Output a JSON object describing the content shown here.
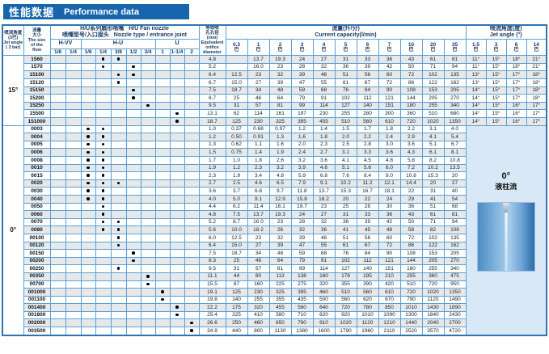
{
  "title": {
    "zh": "性能数据",
    "en": "Performance data"
  },
  "colors": {
    "title_bar": "#1766ad",
    "grid": "#58a0d8",
    "outer_border": "#2e74b5",
    "row_stripe": "#e7e8ea",
    "illustration_bg": "#d9e8f6"
  },
  "header": {
    "angle_col": {
      "zh1": "喷流角度",
      "zh2": "(3巴)",
      "en1": "Jet angle",
      "en2": "( 3 bar)"
    },
    "flow_col": {
      "zh1": "流量",
      "zh2": "大小",
      "en1": "The size",
      "en2": "of the",
      "en3": "flow"
    },
    "nozzle_group": {
      "zh1": "H/U系列扇形喷嘴",
      "en1": "H/U  Fan nozzle",
      "zh2": "喷嘴型号/入口接头",
      "en2": "Nozzle type / entrance joint"
    },
    "nozzle_types": [
      {
        "label": "H-VV",
        "sizes": [
          "1/8",
          "1/4"
        ]
      },
      {
        "label": "H-U",
        "sizes": [
          "1/8",
          "1/4",
          "3/8",
          "1/2",
          "3/4"
        ]
      },
      {
        "label": "U",
        "sizes": [
          "1",
          "1-1/4",
          "2"
        ]
      }
    ],
    "orifice_col": {
      "zh1": "等效喷",
      "zh2": "孔孔径",
      "unit": "(mm)",
      "en1": "Equivalent",
      "en2": "orifice",
      "en3": "diameter"
    },
    "capacity_group": {
      "zh": "流量(升/分)",
      "en": "Current capacity(l/min)"
    },
    "pressures": [
      "0.3",
      "1",
      "2",
      "3",
      "4",
      "5",
      "6",
      "7",
      "10",
      "20",
      "35"
    ],
    "pressure_unit": "巴",
    "angle_group": {
      "zh": "喷流角度(度)",
      "en": "Jet angle (°)"
    },
    "angle_pressures": [
      "1.5",
      "3",
      "6",
      "14"
    ]
  },
  "groups": [
    {
      "angle": "15°",
      "rows": [
        {
          "code": "1560",
          "dots": [
            3,
            4
          ],
          "orifice": "4.8",
          "flow": [
            "",
            "13.7",
            "19.3",
            "24",
            "27",
            "31",
            "33",
            "36",
            "43",
            "61",
            "81"
          ],
          "angles": [
            "11°",
            "15°",
            "18°",
            "21°"
          ]
        },
        {
          "code": "1570",
          "dots": [
            3,
            5
          ],
          "orifice": "5.2",
          "flow": [
            "",
            "16.0",
            "23",
            "28",
            "32",
            "36",
            "39",
            "42",
            "50",
            "71",
            "94"
          ],
          "angles": [
            "11°",
            "15°",
            "18°",
            "21°"
          ]
        },
        {
          "code": "15100",
          "dots": [
            4,
            5
          ],
          "orifice": "6.4",
          "flow": [
            "12.5",
            "23",
            "32",
            "39",
            "46",
            "51",
            "56",
            "60",
            "72",
            "102",
            "135"
          ],
          "angles": [
            "13°",
            "15°",
            "17°",
            "18°"
          ]
        },
        {
          "code": "15120",
          "dots": [
            4
          ],
          "orifice": "6.7",
          "flow": [
            "15.0",
            "27",
            "39",
            "47",
            "55",
            "61",
            "67",
            "72",
            "86",
            "122",
            "162"
          ],
          "angles": [
            "13°",
            "15°",
            "17°",
            "18°"
          ]
        },
        {
          "code": "15150",
          "dots": [
            5
          ],
          "orifice": "7.5",
          "flow": [
            "18.7",
            "34",
            "48",
            "59",
            "68",
            "76",
            "84",
            "90",
            "108",
            "153",
            "205"
          ],
          "angles": [
            "14°",
            "15°",
            "17°",
            "18°"
          ]
        },
        {
          "code": "15200",
          "dots": [
            5
          ],
          "orifice": "8.7",
          "flow": [
            "25",
            "46",
            "64",
            "79",
            "91",
            "102",
            "112",
            "121",
            "144",
            "205",
            "270"
          ],
          "angles": [
            "14°",
            "15°",
            "17°",
            "18°"
          ]
        },
        {
          "code": "15250",
          "dots": [
            6
          ],
          "orifice": "9.5",
          "flow": [
            "31",
            "57",
            "81",
            "99",
            "114",
            "127",
            "140",
            "151",
            "180",
            "255",
            "340"
          ],
          "angles": [
            "14°",
            "15°",
            "16°",
            "17°"
          ]
        },
        {
          "code": "15500",
          "dots": [
            8
          ],
          "orifice": "13.1",
          "flow": [
            "62",
            "114",
            "161",
            "197",
            "230",
            "255",
            "280",
            "300",
            "360",
            "510",
            "680"
          ],
          "angles": [
            "14°",
            "15°",
            "16°",
            "17°"
          ]
        },
        {
          "code": "151000",
          "dots": [
            8
          ],
          "orifice": "18.7",
          "flow": [
            "125",
            "230",
            "325",
            "395",
            "455",
            "510",
            "560",
            "610",
            "720",
            "1020",
            "1350"
          ],
          "angles": [
            "14°",
            "15°",
            "16°",
            "17°"
          ]
        }
      ]
    },
    {
      "angle": "0°",
      "illustration": {
        "deg": "0°",
        "name_zh": "液柱流"
      },
      "rows": [
        {
          "code": "0003",
          "dots": [
            2,
            3
          ],
          "orifice": "1.0",
          "flow": [
            "0.37",
            "0.68",
            "0.97",
            "1.2",
            "1.4",
            "1.5",
            "1.7",
            "1.8",
            "2.2",
            "3.1",
            "4.0"
          ]
        },
        {
          "code": "0004",
          "dots": [
            2,
            3
          ],
          "orifice": "1.2",
          "flow": [
            "0.50",
            "0.91",
            "1.3",
            "1.6",
            "1.8",
            "2.0",
            "2.2",
            "2.4",
            "2.9",
            "4.1",
            "5.4"
          ]
        },
        {
          "code": "0005",
          "dots": [
            2,
            3
          ],
          "orifice": "1.3",
          "flow": [
            "0.62",
            "1.1",
            "1.6",
            "2.0",
            "2.3",
            "2.5",
            "2.8",
            "3.0",
            "3.6",
            "5.1",
            "6.7"
          ]
        },
        {
          "code": "0006",
          "dots": [
            2,
            3
          ],
          "orifice": "1.5",
          "flow": [
            "0.75",
            "1.4",
            "1.9",
            "2.4",
            "2.7",
            "3.1",
            "3.3",
            "3.6",
            "4.3",
            "6.1",
            "8.1"
          ]
        },
        {
          "code": "0008",
          "dots": [
            2,
            3
          ],
          "orifice": "1.7",
          "flow": [
            "1.0",
            "1.8",
            "2.6",
            "3.2",
            "3.6",
            "4.1",
            "4.5",
            "4.8",
            "5.8",
            "8.2",
            "10.8"
          ]
        },
        {
          "code": "0010",
          "dots": [
            2,
            3
          ],
          "orifice": "1.9",
          "flow": [
            "1.2",
            "2.3",
            "3.2",
            "3.9",
            "4.6",
            "5.1",
            "5.6",
            "6.0",
            "7.2",
            "10.2",
            "13.5"
          ]
        },
        {
          "code": "0015",
          "dots": [
            2,
            3
          ],
          "orifice": "2.3",
          "flow": [
            "1.9",
            "3.4",
            "4.8",
            "5.9",
            "6.8",
            "7.6",
            "8.4",
            "9.0",
            "10.8",
            "15.3",
            "20"
          ]
        },
        {
          "code": "0020",
          "dots": [
            2,
            3,
            4
          ],
          "orifice": "2.7",
          "flow": [
            "2.5",
            "4.6",
            "6.5",
            "7.9",
            "9.1",
            "10.2",
            "11.2",
            "12.1",
            "14.4",
            "20",
            "27"
          ]
        },
        {
          "code": "0030",
          "dots": [
            2,
            3
          ],
          "orifice": "3.6",
          "flow": [
            "3.7",
            "6.8",
            "9.7",
            "11.8",
            "13.7",
            "15.3",
            "16.7",
            "18.1",
            "22",
            "31",
            "40"
          ]
        },
        {
          "code": "0040",
          "dots": [
            2,
            3
          ],
          "orifice": "4.0",
          "flow": [
            "5.0",
            "9.1",
            "12.9",
            "15.8",
            "18.2",
            "20",
            "22",
            "24",
            "29",
            "41",
            "54"
          ]
        },
        {
          "code": "0050",
          "dots": [
            3
          ],
          "orifice": "4.4",
          "flow": [
            "6.2",
            "11.4",
            "16.1",
            "19.7",
            "23",
            "25",
            "28",
            "30",
            "36",
            "51",
            "68"
          ]
        },
        {
          "code": "0060",
          "dots": [
            3
          ],
          "orifice": "4.8",
          "flow": [
            "7.5",
            "13.7",
            "19.3",
            "24",
            "27",
            "31",
            "33",
            "36",
            "43",
            "61",
            "81"
          ]
        },
        {
          "code": "0070",
          "dots": [
            3,
            4
          ],
          "orifice": "5.2",
          "flow": [
            "8.7",
            "16.0",
            "23",
            "28",
            "32",
            "36",
            "39",
            "42",
            "50",
            "71",
            "94"
          ]
        },
        {
          "code": "0080",
          "dots": [
            3,
            4
          ],
          "orifice": "5.6",
          "flow": [
            "10.0",
            "18.2",
            "26",
            "32",
            "36",
            "41",
            "45",
            "48",
            "58",
            "82",
            "108"
          ]
        },
        {
          "code": "00100",
          "dots": [
            4
          ],
          "orifice": "6.0",
          "flow": [
            "12.5",
            "23",
            "32",
            "39",
            "46",
            "51",
            "56",
            "60",
            "72",
            "102",
            "135"
          ]
        },
        {
          "code": "00120",
          "dots": [
            4
          ],
          "orifice": "6.4",
          "flow": [
            "15.0",
            "27",
            "39",
            "47",
            "55",
            "61",
            "67",
            "72",
            "86",
            "122",
            "162"
          ]
        },
        {
          "code": "00150",
          "dots": [
            5
          ],
          "orifice": "7.5",
          "flow": [
            "18.7",
            "34",
            "48",
            "59",
            "68",
            "76",
            "84",
            "90",
            "108",
            "153",
            "205"
          ]
        },
        {
          "code": "00200",
          "dots": [
            5
          ],
          "orifice": "8.3",
          "flow": [
            "25",
            "46",
            "64",
            "79",
            "91",
            "102",
            "112",
            "121",
            "144",
            "205",
            "270"
          ]
        },
        {
          "code": "00250",
          "dots": [
            4
          ],
          "orifice": "9.5",
          "flow": [
            "31",
            "57",
            "81",
            "99",
            "114",
            "127",
            "140",
            "151",
            "180",
            "255",
            "340"
          ]
        },
        {
          "code": "00350",
          "dots": [
            6
          ],
          "orifice": "11.1",
          "flow": [
            "44",
            "80",
            "113",
            "138",
            "160",
            "178",
            "195",
            "210",
            "255",
            "360",
            "475"
          ]
        },
        {
          "code": "00700",
          "dots": [
            6
          ],
          "orifice": "15.5",
          "flow": [
            "87",
            "160",
            "225",
            "275",
            "320",
            "355",
            "390",
            "420",
            "510",
            "720",
            "950"
          ]
        },
        {
          "code": "001000",
          "dots": [
            7
          ],
          "orifice": "19.1",
          "flow": [
            "125",
            "230",
            "325",
            "395",
            "460",
            "510",
            "560",
            "610",
            "720",
            "1020",
            "1350"
          ]
        },
        {
          "code": "001100",
          "dots": [
            7
          ],
          "orifice": "19.8",
          "flow": [
            "140",
            "255",
            "355",
            "435",
            "500",
            "560",
            "620",
            "670",
            "790",
            "1120",
            "1490"
          ]
        },
        {
          "code": "001400",
          "dots": [
            8
          ],
          "orifice": "22.2",
          "flow": [
            "175",
            "320",
            "455",
            "560",
            "640",
            "720",
            "780",
            "850",
            "1010",
            "1430",
            "1890"
          ]
        },
        {
          "code": "001800",
          "dots": [
            8
          ],
          "orifice": "25.4",
          "flow": [
            "225",
            "410",
            "580",
            "710",
            "820",
            "920",
            "1010",
            "1090",
            "1300",
            "1840",
            "2430"
          ]
        },
        {
          "code": "002000",
          "dots": [
            9
          ],
          "orifice": "26.6",
          "flow": [
            "250",
            "460",
            "650",
            "790",
            "910",
            "1020",
            "1120",
            "1210",
            "1440",
            "2040",
            "2700"
          ]
        },
        {
          "code": "003500",
          "dots": [
            9
          ],
          "orifice": "34.9",
          "flow": [
            "440",
            "800",
            "1130",
            "1380",
            "1600",
            "1790",
            "1960",
            "2110",
            "2520",
            "3570",
            "4720"
          ]
        }
      ]
    }
  ]
}
